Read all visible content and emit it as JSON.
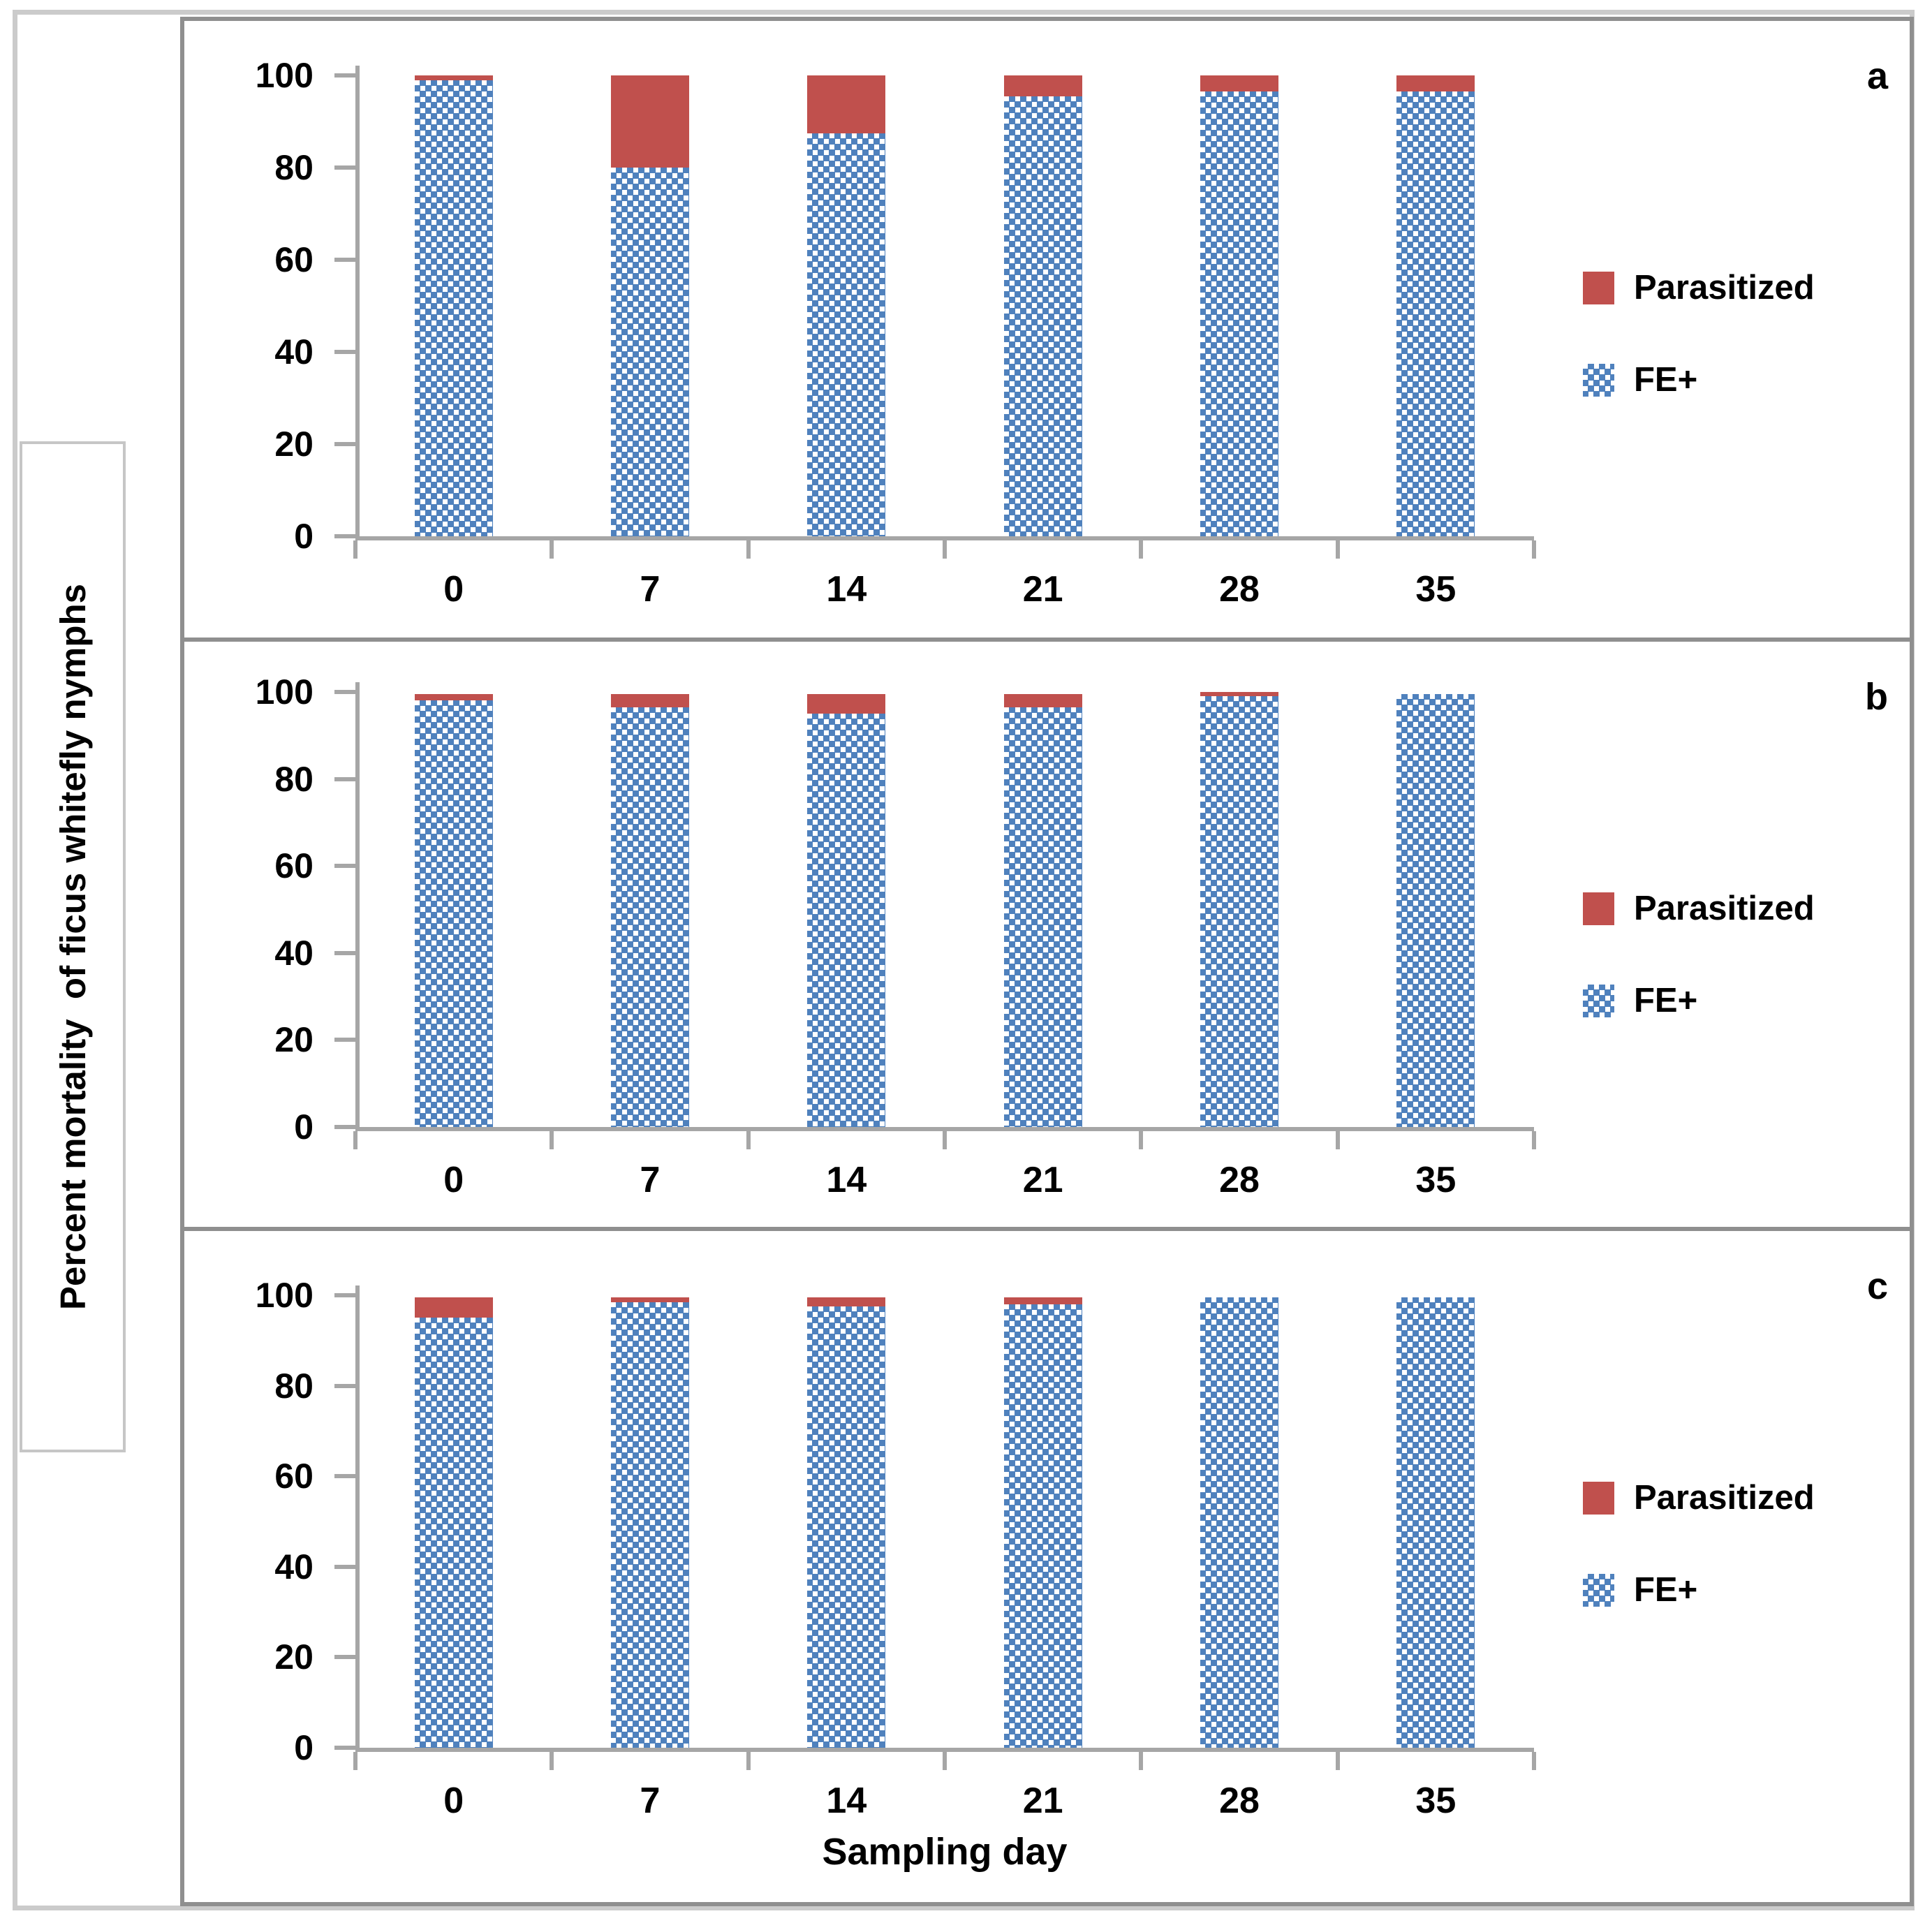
{
  "figure": {
    "y_axis_title": "Percent mortality  of ficus whitefly nymphs",
    "x_axis_title": "Sampling day"
  },
  "legend": {
    "items": [
      {
        "label": "Parasitized",
        "fill": "solid"
      },
      {
        "label": "FE+",
        "fill": "dotted-diamond-pattern"
      }
    ]
  },
  "colors": {
    "parasitized_red": "#C0504D",
    "fe_blue": "#4F81BD",
    "axis_gray": "#A6A6A6",
    "panel_border_gray": "#8F8F8F",
    "outer_frame_gray": "#CBCBCB"
  },
  "chart_data": [
    {
      "panel_label": "a",
      "type": "bar",
      "stacked": true,
      "categories": [
        "0",
        "7",
        "14",
        "21",
        "28",
        "35"
      ],
      "series": [
        {
          "name": "FE+",
          "values": [
            99,
            80,
            87.5,
            95.5,
            96.5,
            96.5
          ]
        },
        {
          "name": "Parasitized",
          "values": [
            1,
            20,
            12.5,
            4.5,
            3.5,
            3.5
          ]
        }
      ],
      "ylim": [
        0,
        100
      ],
      "yticks": [
        0,
        20,
        40,
        60,
        80,
        100
      ],
      "grid": false,
      "legend_position": "right"
    },
    {
      "panel_label": "b",
      "type": "bar",
      "stacked": true,
      "categories": [
        "0",
        "7",
        "14",
        "21",
        "28",
        "35"
      ],
      "series": [
        {
          "name": "FE+",
          "values": [
            98,
            96.5,
            95,
            96.5,
            99,
            99.5
          ]
        },
        {
          "name": "Parasitized",
          "values": [
            1.5,
            3,
            4.5,
            3,
            1,
            0
          ]
        }
      ],
      "ylim": [
        0,
        100
      ],
      "yticks": [
        0,
        20,
        40,
        60,
        80,
        100
      ],
      "grid": false,
      "legend_position": "right"
    },
    {
      "panel_label": "c",
      "type": "bar",
      "stacked": true,
      "categories": [
        "0",
        "7",
        "14",
        "21",
        "28",
        "35"
      ],
      "series": [
        {
          "name": "FE+",
          "values": [
            95,
            98.5,
            97.5,
            98,
            99.5,
            99.5
          ]
        },
        {
          "name": "Parasitized",
          "values": [
            4.5,
            1,
            2,
            1.5,
            0,
            0
          ]
        }
      ],
      "ylim": [
        0,
        100
      ],
      "yticks": [
        0,
        20,
        40,
        60,
        80,
        100
      ],
      "grid": false,
      "legend_position": "right"
    }
  ]
}
